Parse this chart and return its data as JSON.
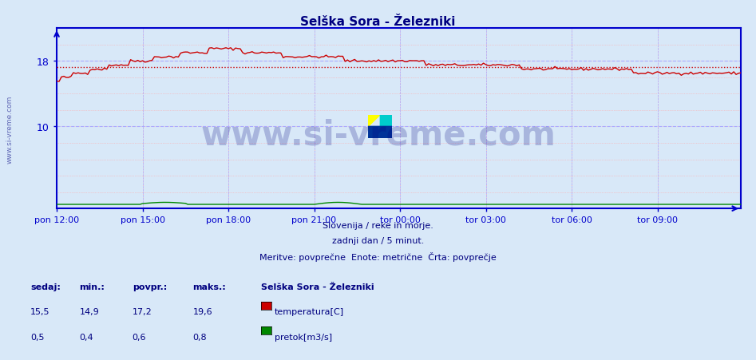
{
  "title": "Selška Sora - Železniki",
  "title_color": "#000080",
  "bg_color": "#d8e8f8",
  "plot_bg_color": "#d8e8f8",
  "grid_color_major": "#aaaaff",
  "grid_color_minor": "#ffaaaa",
  "axis_color": "#0000cc",
  "ylim": [
    0,
    22
  ],
  "xtick_labels": [
    "pon 12:00",
    "pon 15:00",
    "pon 18:00",
    "pon 21:00",
    "tor 00:00",
    "tor 03:00",
    "tor 06:00",
    "tor 09:00"
  ],
  "n_points": 288,
  "temp_min": 14.9,
  "temp_max": 19.6,
  "temp_avg": 17.2,
  "temp_current": 15.5,
  "flow_min": 0.4,
  "flow_max": 0.8,
  "flow_avg": 0.6,
  "flow_current": 0.5,
  "temp_color": "#cc0000",
  "flow_color": "#008800",
  "watermark": "www.si-vreme.com",
  "watermark_color": "#000080",
  "watermark_alpha": 0.22,
  "footer_line1": "Slovenija / reke in morje.",
  "footer_line2": "zadnji dan / 5 minut.",
  "footer_line3": "Meritve: povprečne  Enote: metrične  Črta: povprečje",
  "footer_color": "#000080",
  "legend_title": "Selška Sora - Železniki",
  "legend_items": [
    "temperatura[C]",
    "pretok[m3/s]"
  ],
  "legend_colors": [
    "#cc0000",
    "#008800"
  ],
  "stats_headers": [
    "sedaj:",
    "min.:",
    "povpr.:",
    "maks.:"
  ],
  "stats_temp": [
    "15,5",
    "14,9",
    "17,2",
    "19,6"
  ],
  "stats_flow": [
    "0,5",
    "0,4",
    "0,6",
    "0,8"
  ],
  "sidebar_text": "www.si-vreme.com",
  "sidebar_color": "#000080"
}
